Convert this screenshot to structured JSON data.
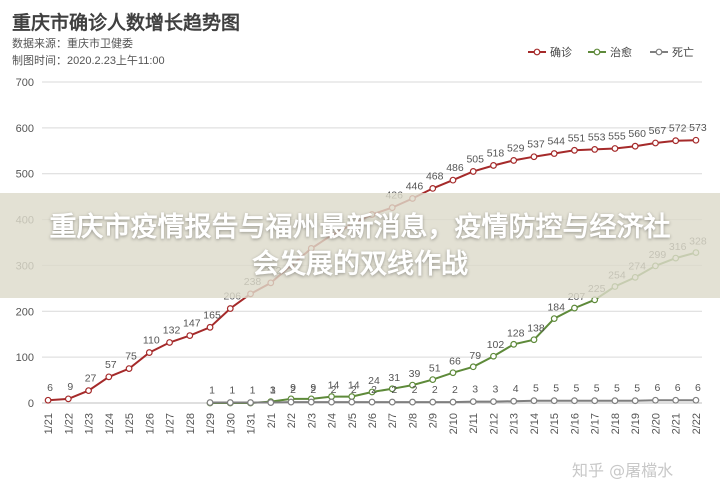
{
  "title": "重庆市确诊人数增长趋势图",
  "source": "数据来源：重庆市卫健委",
  "made_at": "制图时间：2020.2.23上午11:00",
  "banner": "重庆市疫情报告与福州最新消息，疫情防控与经济社会发展的双线作战",
  "watermark": "知乎 @屠檔水",
  "chart_data": {
    "type": "line",
    "title": "重庆市确诊人数增长趋势图",
    "xlabel": "",
    "ylabel": "",
    "ylim": [
      0,
      700
    ],
    "yticks": [
      0,
      100,
      200,
      300,
      400,
      500,
      600,
      700
    ],
    "grid": true,
    "legend": "top-right",
    "categories": [
      "1/21",
      "1/22",
      "1/23",
      "1/24",
      "1/25",
      "1/26",
      "1/27",
      "1/28",
      "1/29",
      "1/30",
      "1/31",
      "2/1",
      "2/2",
      "2/3",
      "2/4",
      "2/5",
      "2/6",
      "2/7",
      "2/8",
      "2/9",
      "2/10",
      "2/11",
      "2/12",
      "2/13",
      "2/14",
      "2/15",
      "2/16",
      "2/17",
      "2/18",
      "2/19",
      "2/20",
      "2/21",
      "2/22"
    ],
    "series": [
      {
        "name": "确诊",
        "color": "#a52a2a",
        "values": [
          6,
          9,
          27,
          57,
          75,
          110,
          132,
          147,
          165,
          206,
          238,
          262,
          300,
          337,
          366,
          389,
          411,
          426,
          446,
          468,
          486,
          505,
          518,
          529,
          537,
          544,
          551,
          553,
          555,
          560,
          567,
          572,
          573
        ],
        "labels": [
          "6",
          "9",
          "27",
          "57",
          "75",
          "110",
          "132",
          "147",
          "165",
          "206",
          "238",
          "262",
          "",
          "",
          "",
          "",
          "",
          "426",
          "446",
          "468",
          "486",
          "505",
          "518",
          "529",
          "537",
          "544",
          "551",
          "553",
          "555",
          "560",
          "567",
          "572",
          "573"
        ]
      },
      {
        "name": "治愈",
        "color": "#5e8a3a",
        "values": [
          null,
          null,
          null,
          null,
          null,
          null,
          null,
          null,
          0,
          0,
          0,
          3,
          9,
          9,
          14,
          14,
          24,
          31,
          39,
          51,
          66,
          79,
          102,
          128,
          138,
          184,
          207,
          225,
          254,
          274,
          299,
          316,
          328
        ],
        "labels": [
          "",
          "",
          "",
          "",
          "",
          "",
          "",
          "",
          "",
          "",
          "",
          "3",
          "9",
          "9",
          "14",
          "14",
          "24",
          "31",
          "39",
          "51",
          "66",
          "79",
          "102",
          "128",
          "138",
          "184",
          "207",
          "225",
          "254",
          "274",
          "299",
          "316",
          "328"
        ]
      },
      {
        "name": "死亡",
        "color": "#7f7f7f",
        "values": [
          null,
          null,
          null,
          null,
          null,
          null,
          null,
          null,
          1,
          1,
          1,
          1,
          2,
          2,
          2,
          2,
          2,
          2,
          2,
          2,
          2,
          3,
          3,
          4,
          5,
          5,
          5,
          5,
          5,
          5,
          6,
          6,
          6
        ],
        "labels": [
          "",
          "",
          "",
          "",
          "",
          "",
          "",
          "",
          "1",
          "1",
          "1",
          "1",
          "2",
          "2",
          "2",
          "2",
          "2",
          "2",
          "2",
          "2",
          "2",
          "3",
          "3",
          "4",
          "5",
          "5",
          "5",
          "5",
          "5",
          "5",
          "6",
          "6",
          "6"
        ]
      }
    ]
  }
}
